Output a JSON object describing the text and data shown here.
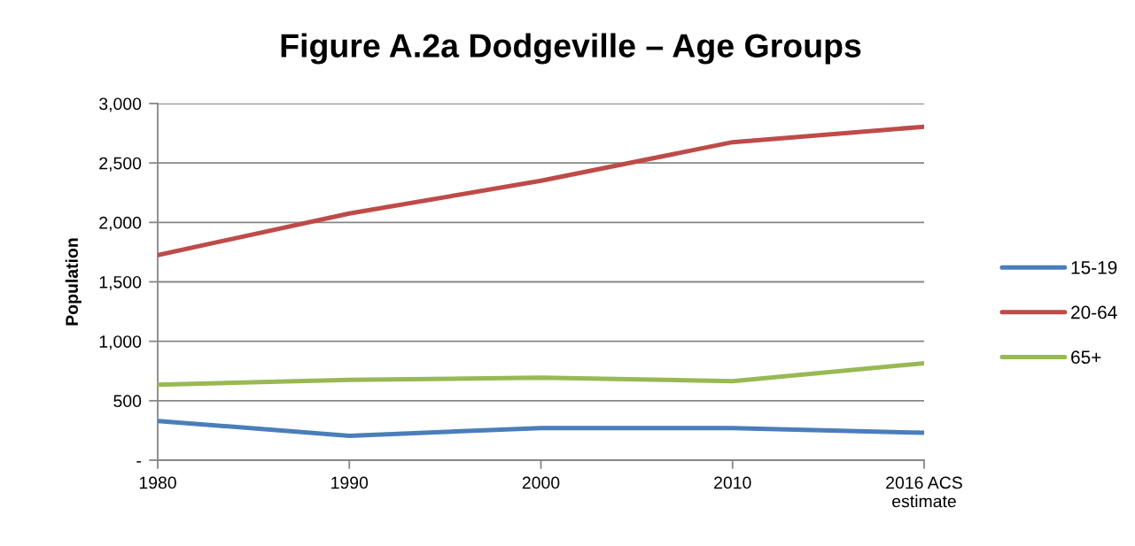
{
  "chart_data": {
    "type": "line",
    "title": "Figure A.2a Dodgeville – Age Groups",
    "ylabel": "Population",
    "categories": [
      "1980",
      "1990",
      "2000",
      "2010",
      "2016 ACS\nestimate"
    ],
    "series": [
      {
        "name": "15-19",
        "color": "#4a7ebb",
        "values": [
          330,
          205,
          270,
          270,
          230
        ]
      },
      {
        "name": "20-64",
        "color": "#be4b48",
        "values": [
          1725,
          2075,
          2350,
          2675,
          2805
        ]
      },
      {
        "name": "65+",
        "color": "#98b954",
        "values": [
          635,
          675,
          695,
          665,
          815
        ]
      }
    ],
    "ylim": [
      0,
      3000
    ],
    "yticks": [
      {
        "value": 0,
        "label": "-"
      },
      500,
      {
        "value": 1000,
        "label": "1,000"
      },
      {
        "value": 1500,
        "label": "1,500"
      },
      {
        "value": 2000,
        "label": "2,000"
      },
      {
        "value": 2500,
        "label": "2,500"
      },
      {
        "value": 3000,
        "label": "3,000"
      }
    ],
    "grid": "y",
    "legend": "right",
    "line_style": "solid"
  }
}
